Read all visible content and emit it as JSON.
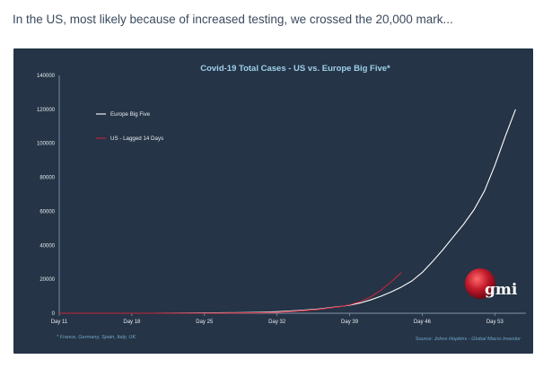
{
  "caption": "In the US, most likely because of increased testing, we crossed the 20,000 mark...",
  "chart_data": {
    "type": "line",
    "title": "Covid-19 Total Cases - US vs. Europe Big Five*",
    "xlabel": "",
    "ylabel": "",
    "ylim": [
      0,
      140000
    ],
    "xlim": [
      11,
      56
    ],
    "yticks": [
      "0",
      "20000",
      "40000",
      "60000",
      "80000",
      "100000",
      "120000",
      "140000"
    ],
    "ytick_values": [
      0,
      20000,
      40000,
      60000,
      80000,
      100000,
      120000,
      140000
    ],
    "xticks": [
      "Day 11",
      "Day 18",
      "Day 25",
      "Day 32",
      "Day 39",
      "Day 46",
      "Day 53"
    ],
    "xtick_values": [
      11,
      18,
      25,
      32,
      39,
      46,
      53
    ],
    "grid": false,
    "legend_position": "top-left",
    "series": [
      {
        "name": "Europe Big Five",
        "color": "#ffffff",
        "x": [
          11,
          20,
          25,
          28,
          30,
          32,
          34,
          36,
          37,
          38,
          39,
          40,
          41,
          42,
          43,
          44,
          45,
          46,
          47,
          48,
          49,
          50,
          51,
          52,
          53,
          54,
          55
        ],
        "y": [
          0,
          0,
          150,
          300,
          500,
          900,
          1600,
          2500,
          3200,
          3900,
          4800,
          6000,
          7800,
          10000,
          12500,
          15500,
          19000,
          24000,
          30500,
          37500,
          45000,
          52500,
          61000,
          72000,
          87000,
          104000,
          120000
        ]
      },
      {
        "name": "US - Lagged 14 Days",
        "color": "#c8243a",
        "x": [
          11,
          25,
          30,
          32,
          34,
          36,
          37,
          38,
          39,
          40,
          41,
          42,
          43,
          44
        ],
        "y": [
          0,
          0,
          250,
          500,
          1200,
          2200,
          3000,
          3800,
          5000,
          6800,
          9500,
          13500,
          18500,
          24000
        ]
      }
    ],
    "annotations": {
      "footnote_left": "* France, Germany, Spain, Italy, UK",
      "footnote_right": "Source: Johns Hopkins - Global Macro Investor"
    }
  },
  "logo": {
    "text": "gmi",
    "color": "#c0182a"
  }
}
